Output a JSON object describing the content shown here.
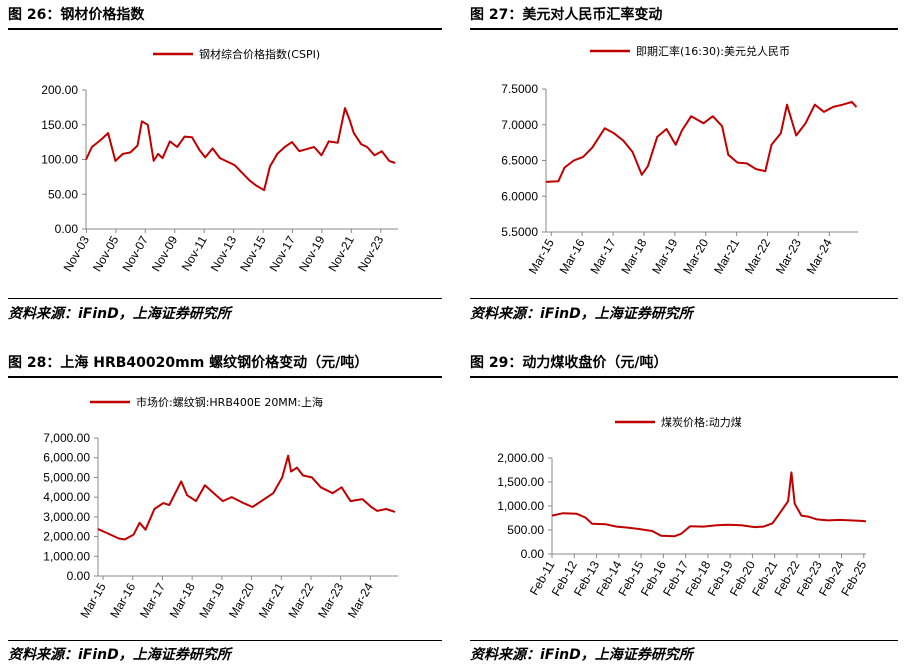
{
  "source_text": "资料来源：iFinD，上海证券研究所",
  "line_color": "#c00000",
  "chart_data": [
    {
      "type": "line",
      "title": "图 26：钢材价格指数",
      "series": [
        {
          "name": "钢材综合价格指数(CSPI)"
        }
      ],
      "x_tick_labels": [
        "Nov-03",
        "Nov-05",
        "Nov-07",
        "Nov-09",
        "Nov-11",
        "Nov-13",
        "Nov-15",
        "Nov-17",
        "Nov-19",
        "Nov-21",
        "Nov-23"
      ],
      "y_tick_labels": [
        "200.00",
        "150.00",
        "100.00",
        "50.00",
        "0.00"
      ],
      "ylim": [
        0,
        200
      ],
      "x_range": [
        2003.8,
        2025.0
      ],
      "x_tick_values": [
        2003.83,
        2005.83,
        2007.83,
        2009.83,
        2011.83,
        2013.83,
        2015.83,
        2017.83,
        2019.83,
        2021.83,
        2023.83
      ],
      "x": [
        2003.8,
        2004.2,
        2004.8,
        2005.3,
        2005.8,
        2006.3,
        2006.8,
        2007.3,
        2007.6,
        2008.0,
        2008.4,
        2008.7,
        2009.0,
        2009.5,
        2010.0,
        2010.5,
        2011.0,
        2011.5,
        2011.9,
        2012.4,
        2012.9,
        2013.4,
        2013.9,
        2014.4,
        2014.9,
        2015.4,
        2015.9,
        2016.3,
        2016.8,
        2017.3,
        2017.8,
        2018.3,
        2018.8,
        2019.3,
        2019.8,
        2020.3,
        2020.9,
        2021.4,
        2021.7,
        2022.0,
        2022.5,
        2022.9,
        2023.4,
        2023.9,
        2024.4,
        2024.8
      ],
      "y": [
        100,
        118,
        128,
        138,
        98,
        108,
        110,
        120,
        155,
        150,
        98,
        108,
        102,
        126,
        118,
        133,
        132,
        114,
        103,
        116,
        102,
        97,
        92,
        81,
        70,
        62,
        56,
        90,
        108,
        118,
        125,
        112,
        115,
        118,
        106,
        126,
        124,
        174,
        158,
        138,
        122,
        118,
        106,
        112,
        98,
        95
      ]
    },
    {
      "type": "line",
      "title": "图 27：美元对人民币汇率变动",
      "series": [
        {
          "name": "即期汇率(16:30):美元兑人民币"
        }
      ],
      "x_tick_labels": [
        "Mar-15",
        "Mar-16",
        "Mar-17",
        "Mar-18",
        "Mar-19",
        "Mar-20",
        "Mar-21",
        "Mar-22",
        "Mar-23",
        "Mar-24"
      ],
      "y_tick_labels": [
        "7.5000",
        "7.0000",
        "6.5000",
        "6.0000",
        "5.5000"
      ],
      "ylim": [
        5.5,
        7.5
      ],
      "x_range": [
        2015.0,
        2025.1
      ],
      "x_tick_values": [
        2015.17,
        2016.17,
        2017.17,
        2018.17,
        2019.17,
        2020.17,
        2021.17,
        2022.17,
        2023.17,
        2024.17
      ],
      "x": [
        2015.0,
        2015.4,
        2015.6,
        2015.9,
        2016.2,
        2016.5,
        2016.9,
        2017.2,
        2017.5,
        2017.8,
        2018.1,
        2018.3,
        2018.6,
        2018.9,
        2019.2,
        2019.4,
        2019.7,
        2020.1,
        2020.4,
        2020.7,
        2020.9,
        2021.2,
        2021.5,
        2021.8,
        2022.1,
        2022.3,
        2022.6,
        2022.8,
        2023.1,
        2023.4,
        2023.7,
        2024.0,
        2024.3,
        2024.6,
        2024.9,
        2025.05
      ],
      "y": [
        6.2,
        6.21,
        6.4,
        6.5,
        6.55,
        6.68,
        6.95,
        6.88,
        6.78,
        6.62,
        6.3,
        6.42,
        6.83,
        6.94,
        6.72,
        6.92,
        7.12,
        7.02,
        7.12,
        6.98,
        6.58,
        6.47,
        6.46,
        6.38,
        6.35,
        6.72,
        6.88,
        7.28,
        6.85,
        7.02,
        7.28,
        7.18,
        7.25,
        7.28,
        7.32,
        7.25
      ]
    },
    {
      "type": "line",
      "title": "图 28：上海 HRB40020mm 螺纹钢价格变动（元/吨）",
      "series": [
        {
          "name": "市场价:螺纹钢:HRB400E 20MM:上海"
        }
      ],
      "x_tick_labels": [
        "Mar-15",
        "Mar-16",
        "Mar-17",
        "Mar-18",
        "Mar-19",
        "Mar-20",
        "Mar-21",
        "Mar-22",
        "Mar-23",
        "Mar-24"
      ],
      "y_tick_labels": [
        "7,000.00",
        "6,000.00",
        "5,000.00",
        "4,000.00",
        "3,000.00",
        "2,000.00",
        "1,000.00",
        "0.00"
      ],
      "ylim": [
        0,
        7000
      ],
      "x_range": [
        2015.0,
        2025.1
      ],
      "x_tick_values": [
        2015.17,
        2016.17,
        2017.17,
        2018.17,
        2019.17,
        2020.17,
        2021.17,
        2022.17,
        2023.17,
        2024.17
      ],
      "x": [
        2015.0,
        2015.3,
        2015.7,
        2015.9,
        2016.2,
        2016.4,
        2016.6,
        2016.9,
        2017.2,
        2017.4,
        2017.8,
        2018.0,
        2018.3,
        2018.6,
        2018.9,
        2019.2,
        2019.5,
        2019.9,
        2020.2,
        2020.5,
        2020.9,
        2021.2,
        2021.4,
        2021.5,
        2021.7,
        2021.9,
        2022.2,
        2022.5,
        2022.9,
        2023.2,
        2023.5,
        2023.9,
        2024.2,
        2024.4,
        2024.7,
        2025.0
      ],
      "y": [
        2380,
        2180,
        1900,
        1850,
        2100,
        2700,
        2350,
        3400,
        3700,
        3600,
        4800,
        4100,
        3800,
        4600,
        4200,
        3800,
        4000,
        3700,
        3500,
        3800,
        4200,
        5000,
        6100,
        5300,
        5500,
        5100,
        5000,
        4500,
        4200,
        4500,
        3800,
        3900,
        3500,
        3300,
        3400,
        3250
      ]
    },
    {
      "type": "line",
      "title": "图 29：动力煤收盘价（元/吨）",
      "series": [
        {
          "name": "煤炭价格:动力煤"
        }
      ],
      "x_tick_labels": [
        "Feb-11",
        "Feb-12",
        "Feb-13",
        "Feb-14",
        "Feb-15",
        "Feb-16",
        "Feb-17",
        "Feb-18",
        "Feb-19",
        "Feb-20",
        "Feb-21",
        "Feb-22",
        "Feb-23",
        "Feb-24",
        "Feb-25"
      ],
      "y_tick_labels": [
        "2,000.00",
        "1,500.00",
        "1,000.00",
        "500.00",
        "0.00"
      ],
      "ylim": [
        0,
        2000
      ],
      "x_range": [
        2011.1,
        2025.2
      ],
      "x_tick_values": [
        2011.1,
        2012.1,
        2013.1,
        2014.1,
        2015.1,
        2016.1,
        2017.1,
        2018.1,
        2019.1,
        2020.1,
        2021.1,
        2022.1,
        2023.1,
        2024.1,
        2025.1
      ],
      "x": [
        2011.1,
        2011.6,
        2012.2,
        2012.6,
        2012.9,
        2013.5,
        2014.0,
        2014.5,
        2015.0,
        2015.6,
        2016.0,
        2016.6,
        2016.9,
        2017.3,
        2017.9,
        2018.5,
        2019.0,
        2019.6,
        2020.2,
        2020.6,
        2021.0,
        2021.4,
        2021.7,
        2021.85,
        2022.0,
        2022.3,
        2022.6,
        2023.0,
        2023.5,
        2024.0,
        2024.5,
        2025.0,
        2025.2
      ],
      "y": [
        800,
        850,
        840,
        760,
        630,
        620,
        570,
        550,
        520,
        480,
        380,
        370,
        420,
        580,
        570,
        600,
        610,
        600,
        560,
        570,
        640,
        900,
        1100,
        1700,
        1050,
        800,
        780,
        720,
        700,
        710,
        700,
        690,
        680
      ]
    }
  ]
}
